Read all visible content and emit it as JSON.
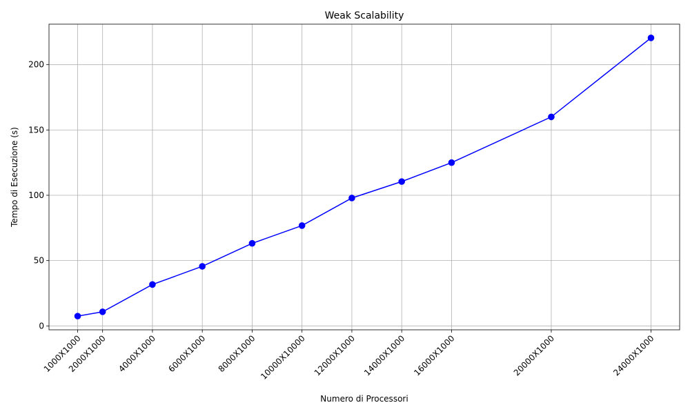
{
  "chart_data": {
    "type": "line",
    "title": "Weak Scalability",
    "xlabel": "Numero di Processori",
    "ylabel": "Tempo di Esecuzione (s)",
    "x": [
      1000,
      2000,
      4000,
      6000,
      8000,
      10000,
      12000,
      14000,
      16000,
      20000,
      24000
    ],
    "x_tick_labels": [
      "1000X1000",
      "2000X1000",
      "4000X1000",
      "6000X1000",
      "8000X1000",
      "10000X10000",
      "12000X1000",
      "14000X1000",
      "16000X1000",
      "20000X1000",
      "24000X1000"
    ],
    "series": [
      {
        "values": [
          7.5,
          10.8,
          31.7,
          45.6,
          63.2,
          76.8,
          97.9,
          110.5,
          125.0,
          160.0,
          220.5
        ],
        "color": "#0000ff",
        "marker": "circle"
      }
    ],
    "xlim": [
      -150,
      25150
    ],
    "ylim": [
      -3,
      231
    ],
    "y_ticks": [
      0,
      50,
      100,
      150,
      200
    ],
    "grid": true
  }
}
